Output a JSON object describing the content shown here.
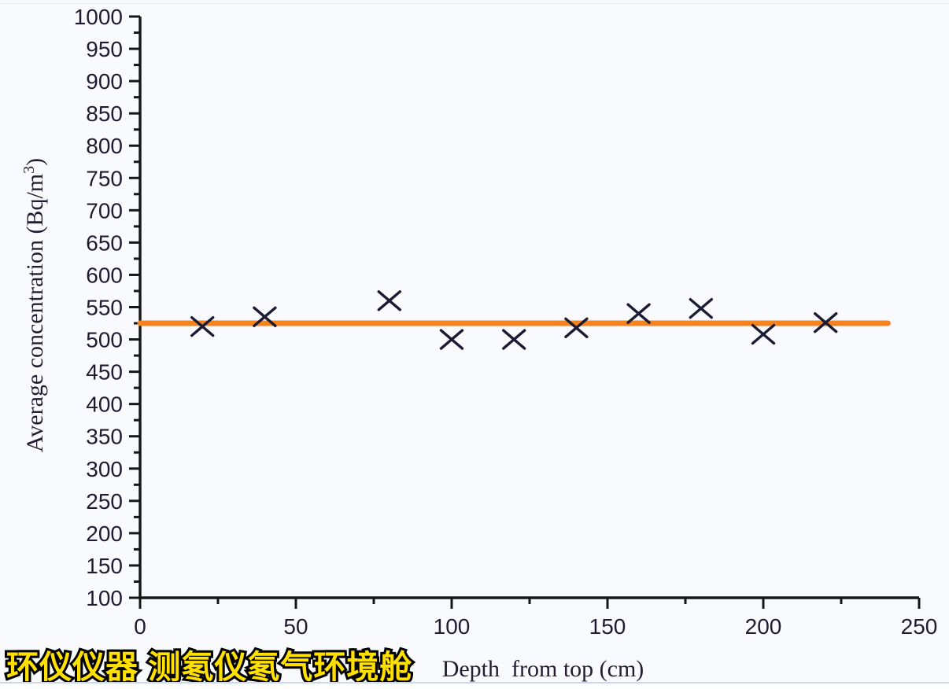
{
  "watermark": {
    "text": "环仪仪器 测氡仪氡气环境舱"
  },
  "colors": {
    "background": "#f8fafd",
    "axis": "#161616",
    "tick_label": "#221a30",
    "axis_title": "#241c33",
    "marker": "#1b1b33",
    "fit_line": "#f5831f",
    "watermark_fill": "#ffe000",
    "watermark_outline": "#000000",
    "bottom_border": "#ccd7e8"
  },
  "chart_data": {
    "type": "scatter",
    "title": "",
    "xlabel": "Depth  from top (cm)",
    "ylabel": "Average concentration (Bq/m³)",
    "ylabel_parts": {
      "main": "Average concentration (Bq/m",
      "sup": "3",
      "end": ")"
    },
    "xlim": [
      0,
      250
    ],
    "ylim": [
      100,
      1000
    ],
    "x_major_step": 50,
    "x_minor_step": 25,
    "y_major_step": 50,
    "y_minor_step": 25,
    "grid": false,
    "legend": "none",
    "marker_shape": "x",
    "points": [
      {
        "x": 20,
        "y": 520
      },
      {
        "x": 40,
        "y": 535
      },
      {
        "x": 80,
        "y": 560
      },
      {
        "x": 100,
        "y": 500
      },
      {
        "x": 120,
        "y": 500
      },
      {
        "x": 140,
        "y": 518
      },
      {
        "x": 160,
        "y": 540
      },
      {
        "x": 180,
        "y": 548
      },
      {
        "x": 200,
        "y": 508
      },
      {
        "x": 220,
        "y": 526
      }
    ],
    "fit_line": {
      "y": 525,
      "x_start": 0,
      "x_end": 240
    }
  }
}
